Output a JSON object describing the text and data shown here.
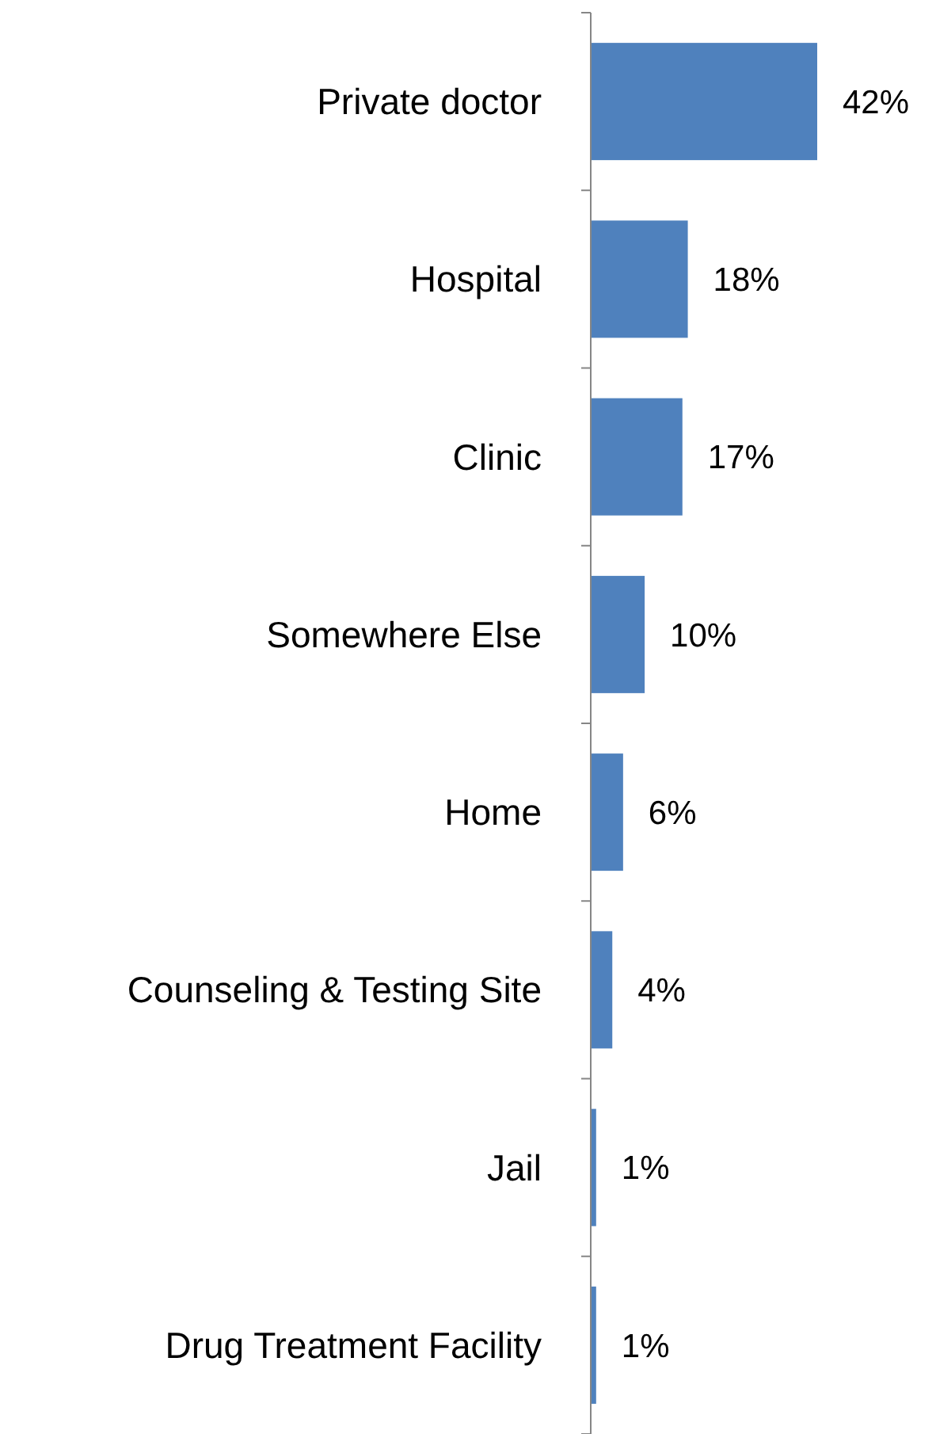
{
  "chart_data": {
    "type": "bar",
    "orientation": "horizontal",
    "categories": [
      "Private doctor",
      "Hospital",
      "Clinic",
      "Somewhere Else",
      "Home",
      "Counseling & Testing Site",
      "Jail",
      "Drug Treatment Facility"
    ],
    "values": [
      42,
      18,
      17,
      10,
      6,
      4,
      1,
      1
    ],
    "value_labels": [
      "42%",
      "18%",
      "17%",
      "10%",
      "6%",
      "4%",
      "1%",
      "1%"
    ],
    "color": "#4f81bd"
  }
}
